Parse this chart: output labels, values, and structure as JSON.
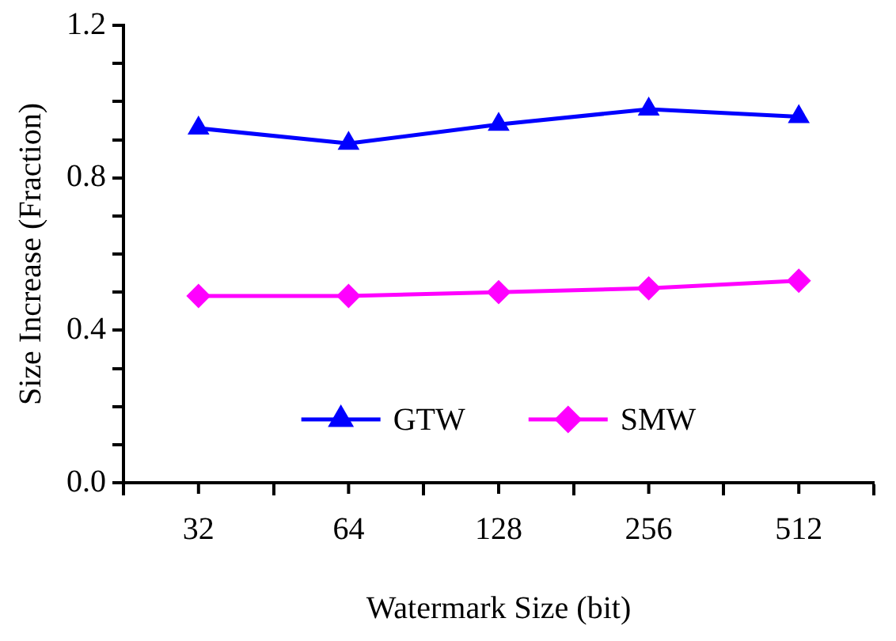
{
  "chart_data": {
    "type": "line",
    "xlabel": "Watermark Size (bit)",
    "ylabel": "Size Increase (Fraction)",
    "categories": [
      "32",
      "64",
      "128",
      "256",
      "512"
    ],
    "series": [
      {
        "name": "GTW",
        "color": "#0000ff",
        "marker": "triangle",
        "values": [
          0.93,
          0.89,
          0.94,
          0.98,
          0.96
        ]
      },
      {
        "name": "SMW",
        "color": "#ff00ff",
        "marker": "diamond",
        "values": [
          0.49,
          0.49,
          0.5,
          0.51,
          0.53
        ]
      }
    ],
    "ylim": [
      0,
      1.2
    ],
    "yticks": [
      {
        "value": 0,
        "label": "0.0"
      },
      {
        "value": 0.1,
        "label": null
      },
      {
        "value": 0.2,
        "label": null
      },
      {
        "value": 0.3,
        "label": null
      },
      0.4,
      {
        "value": 0.5,
        "label": null
      },
      {
        "value": 0.6,
        "label": null
      },
      {
        "value": 0.7,
        "label": null
      },
      0.8,
      {
        "value": 0.9,
        "label": null
      },
      {
        "value": 1,
        "label": null
      },
      {
        "value": 1.1,
        "label": null
      },
      1.2
    ],
    "grid": false,
    "legend": "bottom",
    "line_style": "solid"
  }
}
